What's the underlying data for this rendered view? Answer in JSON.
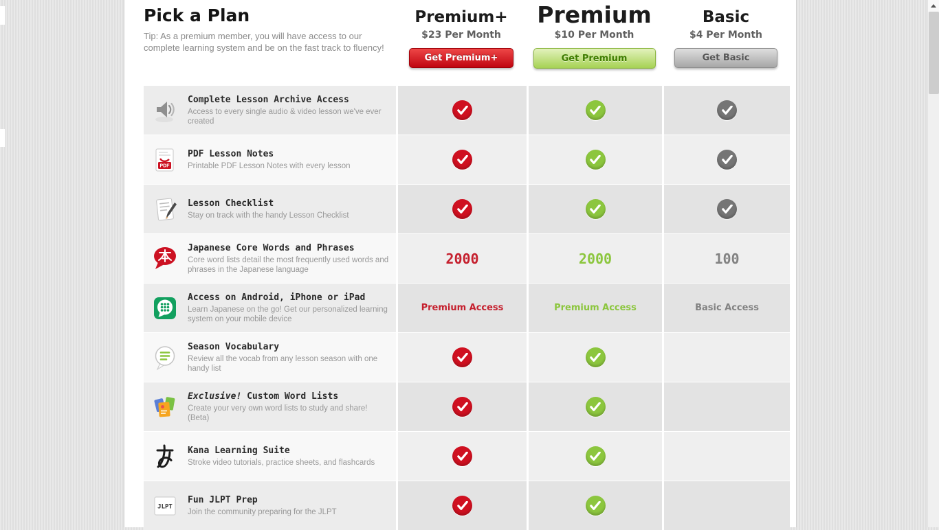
{
  "header": {
    "title": "Pick a Plan",
    "tip": "Tip: As a premium member, you will have access to our complete learning system and be on the fast track to fluency!"
  },
  "plans": [
    {
      "name": "Premium+",
      "price": "$23 Per Month",
      "button_label": "Get Premium+",
      "accent_color": "#cf1020"
    },
    {
      "name": "Premium",
      "price": "$10 Per Month",
      "button_label": "Get Premium",
      "accent_color": "#8cc63e"
    },
    {
      "name": "Basic",
      "price": "$4 Per Month",
      "button_label": "Get Basic",
      "accent_color": "#757575"
    }
  ],
  "features": [
    {
      "icon": "audio-speaker-icon",
      "title": "Complete Lesson Archive Access",
      "description": "Access to every single audio & video lesson we've ever created",
      "premium_plus": "check",
      "premium": "check",
      "basic": "check"
    },
    {
      "icon": "pdf-document-icon",
      "title": "PDF Lesson Notes",
      "description": "Printable PDF Lesson Notes with every lesson",
      "premium_plus": "check",
      "premium": "check",
      "basic": "check"
    },
    {
      "icon": "lesson-checklist-icon",
      "title": "Lesson Checklist",
      "description": "Stay on track with the handy Lesson Checklist",
      "premium_plus": "check",
      "premium": "check",
      "basic": "check"
    },
    {
      "icon": "core-words-bubble-icon",
      "title": "Japanese Core Words and Phrases",
      "description": "Core word lists detail the most frequently used words and phrases in the Japanese language",
      "premium_plus": "2000",
      "premium": "2000",
      "basic": "100"
    },
    {
      "icon": "mobile-app-icon",
      "title": "Access on Android, iPhone or iPad",
      "description": "Learn Japanese on the go! Get our personalized learning system on your mobile device",
      "premium_plus": "Premium Access",
      "premium": "Premium Access",
      "basic": "Basic Access"
    },
    {
      "icon": "season-vocabulary-icon",
      "title": "Season Vocabulary",
      "description": "Review all the vocab from any lesson season with one handy list",
      "premium_plus": "check",
      "premium": "check",
      "basic": ""
    },
    {
      "icon": "custom-word-lists-icon",
      "title_italic": "Exclusive!",
      "title": " Custom Word Lists",
      "description": "Create your very own word lists to study and share! (Beta)",
      "premium_plus": "check",
      "premium": "check",
      "basic": ""
    },
    {
      "icon": "kana-learning-icon",
      "title": "Kana Learning Suite",
      "description": "Stroke video tutorials, practice sheets, and flashcards",
      "premium_plus": "check",
      "premium": "check",
      "basic": ""
    },
    {
      "icon": "jlpt-prep-icon",
      "title": "Fun JLPT Prep",
      "description": "Join the community preparing for the JLPT",
      "premium_plus": "check",
      "premium": "check",
      "basic": ""
    }
  ]
}
